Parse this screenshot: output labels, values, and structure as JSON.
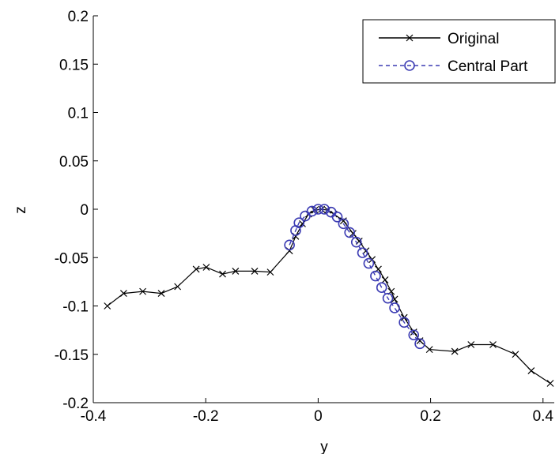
{
  "chart_data": {
    "type": "line",
    "title": "",
    "xlabel": "y",
    "ylabel": "z",
    "xlim": [
      -0.4,
      0.42
    ],
    "ylim": [
      -0.2,
      0.2
    ],
    "x_ticks": [
      -0.4,
      -0.2,
      0,
      0.2,
      0.4
    ],
    "x_tick_labels": [
      "-0.4",
      "-0.2",
      "0",
      "0.2",
      "0.4"
    ],
    "y_ticks": [
      -0.2,
      -0.15,
      -0.1,
      -0.05,
      0,
      0.05,
      0.1,
      0.15,
      0.2
    ],
    "y_tick_labels": [
      "-0.2",
      "-0.15",
      "-0.1",
      "-0.05",
      "0",
      "0.05",
      "0.1",
      "0.15",
      "0.2"
    ],
    "grid": false,
    "legend_position": "top-right",
    "series": [
      {
        "name": "Original",
        "color": "#000000",
        "line_style": "solid",
        "marker": "x",
        "points": [
          [
            -0.375,
            -0.1
          ],
          [
            -0.346,
            -0.087
          ],
          [
            -0.312,
            -0.085
          ],
          [
            -0.279,
            -0.087
          ],
          [
            -0.25,
            -0.08
          ],
          [
            -0.217,
            -0.062
          ],
          [
            -0.199,
            -0.06
          ],
          [
            -0.17,
            -0.067
          ],
          [
            -0.147,
            -0.064
          ],
          [
            -0.113,
            -0.064
          ],
          [
            -0.085,
            -0.065
          ],
          [
            -0.051,
            -0.043
          ],
          [
            -0.04,
            -0.028
          ],
          [
            -0.028,
            -0.015
          ],
          [
            -0.017,
            -0.005
          ],
          [
            -0.006,
            -0.001
          ],
          [
            0.006,
            0.0
          ],
          [
            0.017,
            -0.001
          ],
          [
            0.028,
            -0.005
          ],
          [
            0.045,
            -0.012
          ],
          [
            0.062,
            -0.025
          ],
          [
            0.073,
            -0.033
          ],
          [
            0.085,
            -0.043
          ],
          [
            0.096,
            -0.052
          ],
          [
            0.107,
            -0.062
          ],
          [
            0.119,
            -0.073
          ],
          [
            0.13,
            -0.085
          ],
          [
            0.136,
            -0.093
          ],
          [
            0.153,
            -0.112
          ],
          [
            0.17,
            -0.127
          ],
          [
            0.181,
            -0.136
          ],
          [
            0.198,
            -0.145
          ],
          [
            0.243,
            -0.147
          ],
          [
            0.272,
            -0.14
          ],
          [
            0.311,
            -0.14
          ],
          [
            0.351,
            -0.15
          ],
          [
            0.379,
            -0.167
          ],
          [
            0.413,
            -0.18
          ]
        ]
      },
      {
        "name": "Central Part",
        "color": "#3b3bb3",
        "line_style": "dashed",
        "marker": "o",
        "points": [
          [
            -0.051,
            -0.037
          ],
          [
            -0.04,
            -0.022
          ],
          [
            -0.034,
            -0.014
          ],
          [
            -0.023,
            -0.007
          ],
          [
            -0.011,
            -0.002
          ],
          [
            0.0,
            0.0
          ],
          [
            0.011,
            0.0
          ],
          [
            0.023,
            -0.003
          ],
          [
            0.034,
            -0.008
          ],
          [
            0.045,
            -0.015
          ],
          [
            0.056,
            -0.024
          ],
          [
            0.068,
            -0.034
          ],
          [
            0.079,
            -0.045
          ],
          [
            0.09,
            -0.056
          ],
          [
            0.102,
            -0.069
          ],
          [
            0.113,
            -0.081
          ],
          [
            0.124,
            -0.092
          ],
          [
            0.136,
            -0.102
          ],
          [
            0.153,
            -0.117
          ],
          [
            0.17,
            -0.13
          ],
          [
            0.181,
            -0.139
          ]
        ]
      }
    ]
  }
}
